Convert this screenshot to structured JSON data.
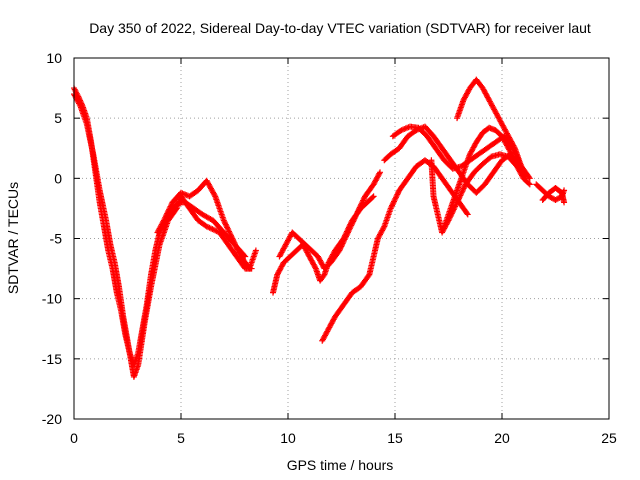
{
  "chart_data": {
    "type": "scatter",
    "title": "Day 350 of 2022, Sidereal Day-to-day VTEC variation (SDTVAR) for receiver laut",
    "xlabel": "GPS time / hours",
    "ylabel": "SDTVAR / TECUs",
    "xlim": [
      0,
      25
    ],
    "ylim": [
      -20,
      10
    ],
    "xticks": [
      0,
      5,
      10,
      15,
      20,
      25
    ],
    "yticks": [
      -20,
      -15,
      -10,
      -5,
      0,
      5,
      10
    ],
    "xtick_labels": [
      "0",
      "5",
      "10",
      "15",
      "20",
      "25"
    ],
    "ytick_labels": [
      "-20",
      "-15",
      "-10",
      "-5",
      "0",
      "5",
      "10"
    ],
    "grid": true,
    "marker": "+",
    "color": "#ff0000",
    "series": [
      {
        "name": "track-1",
        "points": [
          [
            0.0,
            7.5
          ],
          [
            0.2,
            6.8
          ],
          [
            0.4,
            6.0
          ],
          [
            0.6,
            5.0
          ],
          [
            0.8,
            3.0
          ],
          [
            1.0,
            0.5
          ],
          [
            1.2,
            -2.0
          ],
          [
            1.4,
            -4.0
          ],
          [
            1.6,
            -6.0
          ],
          [
            1.8,
            -7.5
          ],
          [
            2.0,
            -9.5
          ],
          [
            2.2,
            -11.0
          ],
          [
            2.4,
            -13.0
          ],
          [
            2.6,
            -14.5
          ],
          [
            2.8,
            -15.5
          ],
          [
            3.0,
            -14.5
          ],
          [
            3.2,
            -12.5
          ],
          [
            3.4,
            -10.5
          ],
          [
            3.6,
            -8.0
          ],
          [
            3.8,
            -6.0
          ],
          [
            4.0,
            -4.5
          ],
          [
            4.3,
            -3.5
          ],
          [
            4.6,
            -2.5
          ],
          [
            4.9,
            -2.0
          ],
          [
            5.2,
            -2.0
          ],
          [
            5.6,
            -2.5
          ],
          [
            6.0,
            -3.0
          ],
          [
            6.5,
            -3.5
          ],
          [
            7.0,
            -4.5
          ],
          [
            7.5,
            -5.5
          ],
          [
            8.0,
            -6.5
          ]
        ]
      },
      {
        "name": "track-2",
        "points": [
          [
            0.0,
            7.0
          ],
          [
            0.3,
            6.0
          ],
          [
            0.6,
            4.5
          ],
          [
            0.9,
            2.0
          ],
          [
            1.2,
            -1.0
          ],
          [
            1.5,
            -3.5
          ],
          [
            1.7,
            -5.5
          ],
          [
            1.9,
            -7.0
          ],
          [
            2.1,
            -9.0
          ],
          [
            2.3,
            -11.5
          ],
          [
            2.5,
            -13.5
          ],
          [
            2.7,
            -15.5
          ],
          [
            2.8,
            -16.5
          ],
          [
            3.0,
            -15.5
          ],
          [
            3.3,
            -12.0
          ],
          [
            3.6,
            -9.0
          ],
          [
            4.0,
            -5.5
          ],
          [
            4.4,
            -3.5
          ],
          [
            4.8,
            -2.5
          ],
          [
            5.0,
            -1.5
          ],
          [
            5.4,
            -2.5
          ],
          [
            5.8,
            -3.5
          ],
          [
            6.2,
            -4.0
          ],
          [
            6.8,
            -4.5
          ],
          [
            7.2,
            -5.5
          ],
          [
            7.6,
            -6.5
          ],
          [
            8.0,
            -7.5
          ],
          [
            8.3,
            -7.5
          ]
        ]
      },
      {
        "name": "track-3",
        "points": [
          [
            3.9,
            -4.5
          ],
          [
            4.2,
            -3.5
          ],
          [
            4.6,
            -2.0
          ],
          [
            5.0,
            -1.2
          ],
          [
            5.4,
            -1.5
          ],
          [
            5.8,
            -1.0
          ],
          [
            6.2,
            -0.2
          ],
          [
            6.6,
            -1.5
          ],
          [
            7.0,
            -3.5
          ],
          [
            7.4,
            -5.0
          ],
          [
            7.8,
            -6.5
          ],
          [
            8.2,
            -7.5
          ],
          [
            8.5,
            -6.0
          ]
        ]
      },
      {
        "name": "track-4",
        "points": [
          [
            9.3,
            -9.5
          ],
          [
            9.5,
            -8.0
          ],
          [
            9.8,
            -7.0
          ],
          [
            10.1,
            -6.5
          ],
          [
            10.4,
            -6.0
          ],
          [
            10.7,
            -5.5
          ],
          [
            11.0,
            -6.5
          ],
          [
            11.3,
            -7.5
          ],
          [
            11.5,
            -8.5
          ],
          [
            11.7,
            -8.0
          ],
          [
            11.9,
            -7.0
          ],
          [
            12.2,
            -6.0
          ],
          [
            12.6,
            -5.0
          ],
          [
            13.0,
            -3.5
          ],
          [
            13.4,
            -2.5
          ],
          [
            13.7,
            -2.0
          ],
          [
            14.0,
            -1.5
          ]
        ]
      },
      {
        "name": "track-5",
        "points": [
          [
            9.6,
            -6.5
          ],
          [
            9.9,
            -5.5
          ],
          [
            10.2,
            -4.5
          ],
          [
            10.5,
            -5.0
          ],
          [
            10.8,
            -5.5
          ],
          [
            11.1,
            -6.0
          ],
          [
            11.4,
            -6.5
          ],
          [
            11.7,
            -7.5
          ],
          [
            12.0,
            -7.0
          ],
          [
            12.4,
            -6.0
          ],
          [
            12.8,
            -4.5
          ],
          [
            13.2,
            -3.0
          ],
          [
            13.6,
            -1.5
          ],
          [
            14.0,
            -0.5
          ],
          [
            14.3,
            0.5
          ]
        ]
      },
      {
        "name": "track-6",
        "points": [
          [
            11.6,
            -13.5
          ],
          [
            11.9,
            -12.5
          ],
          [
            12.2,
            -11.5
          ],
          [
            12.6,
            -10.5
          ],
          [
            13.0,
            -9.5
          ],
          [
            13.4,
            -9.0
          ],
          [
            13.8,
            -8.0
          ],
          [
            14.0,
            -6.5
          ],
          [
            14.2,
            -5.0
          ],
          [
            14.5,
            -4.0
          ],
          [
            14.8,
            -2.5
          ],
          [
            15.2,
            -1.0
          ],
          [
            15.6,
            0.0
          ],
          [
            16.0,
            1.0
          ],
          [
            16.4,
            1.5
          ],
          [
            16.8,
            1.0
          ],
          [
            17.2,
            0.0
          ],
          [
            17.6,
            -1.0
          ],
          [
            18.0,
            -2.0
          ],
          [
            18.4,
            -3.0
          ]
        ]
      },
      {
        "name": "track-7",
        "points": [
          [
            14.5,
            1.5
          ],
          [
            14.8,
            2.0
          ],
          [
            15.2,
            2.5
          ],
          [
            15.6,
            3.5
          ],
          [
            16.0,
            4.0
          ],
          [
            16.4,
            4.3
          ],
          [
            16.8,
            3.5
          ],
          [
            17.2,
            2.5
          ],
          [
            17.6,
            1.5
          ],
          [
            18.0,
            0.5
          ],
          [
            18.4,
            -0.5
          ],
          [
            18.8,
            -1.2
          ],
          [
            19.2,
            -0.5
          ],
          [
            19.6,
            0.5
          ],
          [
            20.0,
            1.5
          ],
          [
            20.4,
            2.0
          ]
        ]
      },
      {
        "name": "track-8",
        "points": [
          [
            14.9,
            3.5
          ],
          [
            15.3,
            4.0
          ],
          [
            15.7,
            4.3
          ],
          [
            16.1,
            4.2
          ],
          [
            16.5,
            3.5
          ],
          [
            16.9,
            2.5
          ],
          [
            17.3,
            1.5
          ],
          [
            17.7,
            0.8
          ],
          [
            18.1,
            1.0
          ],
          [
            18.5,
            1.5
          ],
          [
            18.9,
            2.0
          ],
          [
            19.3,
            2.5
          ],
          [
            19.7,
            3.0
          ],
          [
            20.1,
            3.5
          ],
          [
            20.5,
            2.5
          ],
          [
            20.9,
            1.0
          ],
          [
            21.3,
            0.0
          ]
        ]
      },
      {
        "name": "track-9",
        "points": [
          [
            16.7,
            1.5
          ],
          [
            16.8,
            -1.5
          ],
          [
            17.0,
            -3.0
          ],
          [
            17.2,
            -4.5
          ],
          [
            17.5,
            -3.5
          ],
          [
            17.9,
            -2.0
          ],
          [
            18.3,
            -0.5
          ],
          [
            18.7,
            0.5
          ],
          [
            19.1,
            1.2
          ],
          [
            19.5,
            1.8
          ],
          [
            19.9,
            2.0
          ],
          [
            20.3,
            1.8
          ],
          [
            20.7,
            1.0
          ],
          [
            21.0,
            0.0
          ],
          [
            21.3,
            -0.5
          ]
        ]
      },
      {
        "name": "track-10",
        "points": [
          [
            17.9,
            5.0
          ],
          [
            18.2,
            6.5
          ],
          [
            18.5,
            7.5
          ],
          [
            18.8,
            8.2
          ],
          [
            19.1,
            7.5
          ],
          [
            19.4,
            6.5
          ],
          [
            19.7,
            5.5
          ],
          [
            20.0,
            4.5
          ],
          [
            20.3,
            3.5
          ],
          [
            20.6,
            2.5
          ],
          [
            20.9,
            1.0
          ],
          [
            21.1,
            0.0
          ]
        ]
      },
      {
        "name": "track-11",
        "points": [
          [
            17.3,
            -4.0
          ],
          [
            17.6,
            -2.5
          ],
          [
            17.9,
            -1.0
          ],
          [
            18.2,
            0.5
          ],
          [
            18.5,
            2.0
          ],
          [
            18.8,
            3.0
          ],
          [
            19.1,
            3.8
          ],
          [
            19.4,
            4.2
          ],
          [
            19.7,
            4.0
          ],
          [
            20.0,
            3.5
          ],
          [
            20.3,
            2.5
          ],
          [
            20.6,
            1.5
          ],
          [
            20.9,
            0.5
          ]
        ]
      },
      {
        "name": "track-12",
        "points": [
          [
            21.6,
            -0.5
          ],
          [
            21.9,
            -1.0
          ],
          [
            22.2,
            -1.5
          ],
          [
            22.5,
            -1.8
          ],
          [
            22.8,
            -1.5
          ],
          [
            22.9,
            -1.0
          ]
        ]
      },
      {
        "name": "track-13",
        "points": [
          [
            21.9,
            -1.8
          ],
          [
            22.2,
            -1.2
          ],
          [
            22.5,
            -0.8
          ],
          [
            22.8,
            -1.2
          ],
          [
            22.9,
            -2.0
          ]
        ]
      }
    ]
  }
}
